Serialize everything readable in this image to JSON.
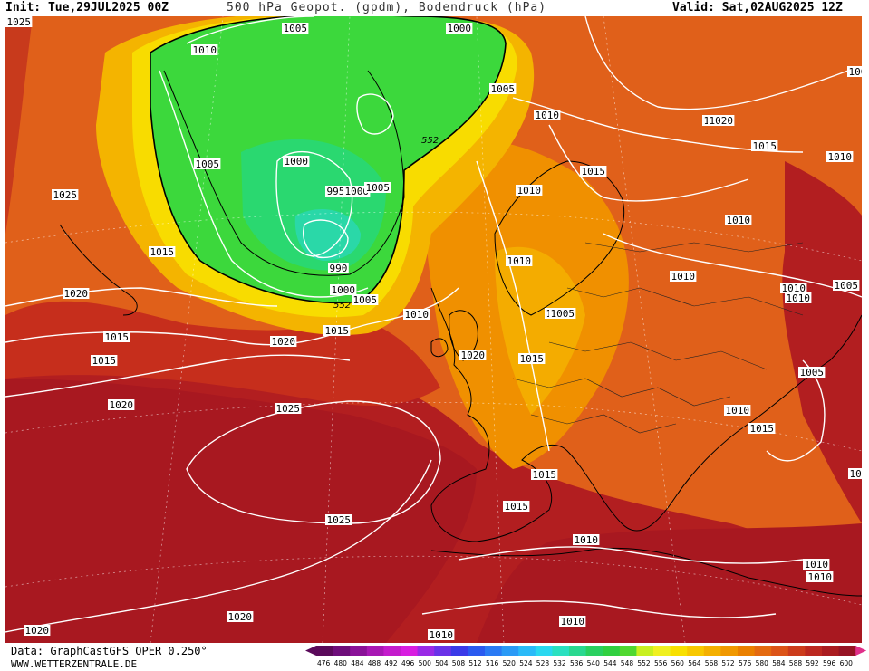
{
  "header": {
    "init": "Init: Tue,29JUL2025 00Z",
    "title": "500 hPa Geopot. (gpdm), Bodendruck (hPa)",
    "valid": "Valid: Sat,02AUG2025 12Z"
  },
  "footer": {
    "data_source": "Data: GraphCastGFS OPER 0.250°",
    "website": "WWW.WETTERZENTRALE.DE"
  },
  "legend": {
    "levels": [
      "476",
      "480",
      "484",
      "488",
      "492",
      "496",
      "500",
      "504",
      "508",
      "512",
      "516",
      "520",
      "524",
      "528",
      "532",
      "536",
      "540",
      "544",
      "548",
      "552",
      "556",
      "560",
      "564",
      "568",
      "572",
      "576",
      "580",
      "584",
      "588",
      "592",
      "596",
      "600"
    ],
    "colors": [
      "#5a0a5a",
      "#6e0e7a",
      "#8a1298",
      "#a818b4",
      "#c41ccc",
      "#d81ee0",
      "#9a2ae6",
      "#6a32e8",
      "#3a3ae8",
      "#2a5af0",
      "#2a7af4",
      "#2a9af6",
      "#2abaf8",
      "#2ad8f0",
      "#2ae0c0",
      "#2ad890",
      "#2ad060",
      "#30d040",
      "#50d830",
      "#c8f020",
      "#f0f020",
      "#f8e000",
      "#f8c800",
      "#f4b000",
      "#f09800",
      "#ea8000",
      "#e46a10",
      "#dc5418",
      "#cc3c1c",
      "#bc2820",
      "#aa1c20",
      "#961424"
    ],
    "arrow_color": "#e0308a"
  },
  "map": {
    "isobar_labels": [
      {
        "text": "1005"
      },
      {
        "text": "1000"
      },
      {
        "text": "1010"
      },
      {
        "text": "1005"
      },
      {
        "text": "1010"
      },
      {
        "text": "1020"
      },
      {
        "text": "1005"
      },
      {
        "text": "1000"
      },
      {
        "text": "995"
      },
      {
        "text": "1000"
      },
      {
        "text": "1005"
      },
      {
        "text": "1025"
      },
      {
        "text": "1015"
      },
      {
        "text": "990"
      },
      {
        "text": "1000"
      },
      {
        "text": "1005"
      },
      {
        "text": "1010"
      },
      {
        "text": "1020"
      },
      {
        "text": "1015"
      },
      {
        "text": "1015"
      },
      {
        "text": "1020"
      },
      {
        "text": "1015"
      },
      {
        "text": "1020"
      },
      {
        "text": "1025"
      },
      {
        "text": "1025"
      },
      {
        "text": "1020"
      },
      {
        "text": "1020"
      },
      {
        "text": "1010"
      },
      {
        "text": "1015"
      },
      {
        "text": "1010"
      },
      {
        "text": "1015"
      },
      {
        "text": "1020"
      },
      {
        "text": "1015"
      },
      {
        "text": "1010"
      },
      {
        "text": "1010"
      },
      {
        "text": "1010"
      },
      {
        "text": "1010"
      },
      {
        "text": "1005"
      },
      {
        "text": "1010"
      },
      {
        "text": "1005"
      },
      {
        "text": "1010"
      },
      {
        "text": "1005"
      },
      {
        "text": "1015"
      },
      {
        "text": "1015"
      },
      {
        "text": "1010"
      },
      {
        "text": "1010"
      },
      {
        "text": "1010"
      },
      {
        "text": "1010"
      },
      {
        "text": "1015"
      },
      {
        "text": "1010"
      },
      {
        "text": "1010"
      },
      {
        "text": "1020"
      },
      {
        "text": "100"
      },
      {
        "text": "1025"
      },
      {
        "text": "10"
      }
    ],
    "contour_labels": [
      {
        "text": "552"
      },
      {
        "text": "552"
      }
    ]
  }
}
